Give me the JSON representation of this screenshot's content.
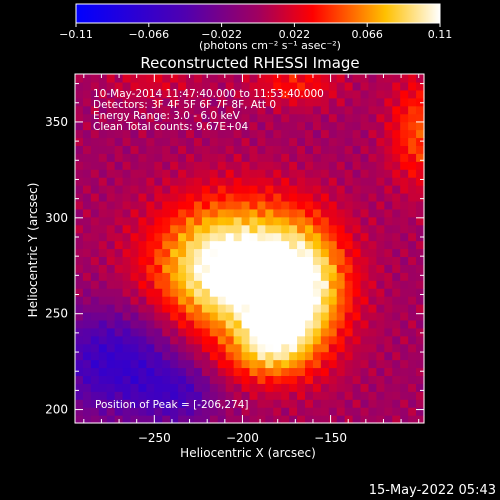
{
  "chart_data": {
    "type": "heatmap",
    "title": "Reconstructed RHESSI Image",
    "xlabel": "Heliocentric X (arcsec)",
    "ylabel": "Heliocentric Y (arcsec)",
    "xlim": [
      -295,
      -97
    ],
    "ylim": [
      193,
      375
    ],
    "x_ticks": [
      -250,
      -200,
      -150
    ],
    "y_ticks": [
      200,
      250,
      300,
      350
    ],
    "colorbar": {
      "range": [
        -0.11,
        0.11
      ],
      "ticks": [
        "-0.11",
        "-0.066",
        "-0.022",
        "0.022",
        "0.066",
        "0.11"
      ],
      "units_label": "(photons cm⁻² s⁻¹ asec⁻²)"
    },
    "annotations": [
      "10-May-2014 11:47:40.000 to 11:53:40.000",
      "Detectors: 3F 4F 5F 6F 7F 8F, Att 0",
      "Energy Range: 3.0 - 6.0 keV",
      "Clean    Total counts: 9.67E+04"
    ],
    "peak_label": "Position of Peak = [-206,274]",
    "peak": {
      "x": -206,
      "y": 274,
      "value": 0.11
    },
    "components": [
      {
        "x": -206,
        "y": 274,
        "sx": 30,
        "sy": 24,
        "amp": 0.13
      },
      {
        "x": -165,
        "y": 262,
        "sx": 18,
        "sy": 24,
        "amp": 0.085
      },
      {
        "x": -183,
        "y": 240,
        "sx": 14,
        "sy": 12,
        "amp": 0.06
      },
      {
        "x": -190,
        "y": 225,
        "sx": 20,
        "sy": 10,
        "amp": 0.03
      },
      {
        "x": -272,
        "y": 225,
        "sx": 26,
        "sy": 20,
        "amp": -0.065
      },
      {
        "x": -235,
        "y": 208,
        "sx": 16,
        "sy": 12,
        "amp": -0.04
      },
      {
        "x": -100,
        "y": 345,
        "sx": 12,
        "sy": 20,
        "amp": 0.05
      },
      {
        "x": -170,
        "y": 370,
        "sx": 18,
        "sy": 8,
        "amp": 0.035
      },
      {
        "x": -250,
        "y": 372,
        "sx": 18,
        "sy": 8,
        "amp": 0.02
      }
    ],
    "background_level": 0.0
  },
  "timestamp": "15-May-2022 05:43"
}
